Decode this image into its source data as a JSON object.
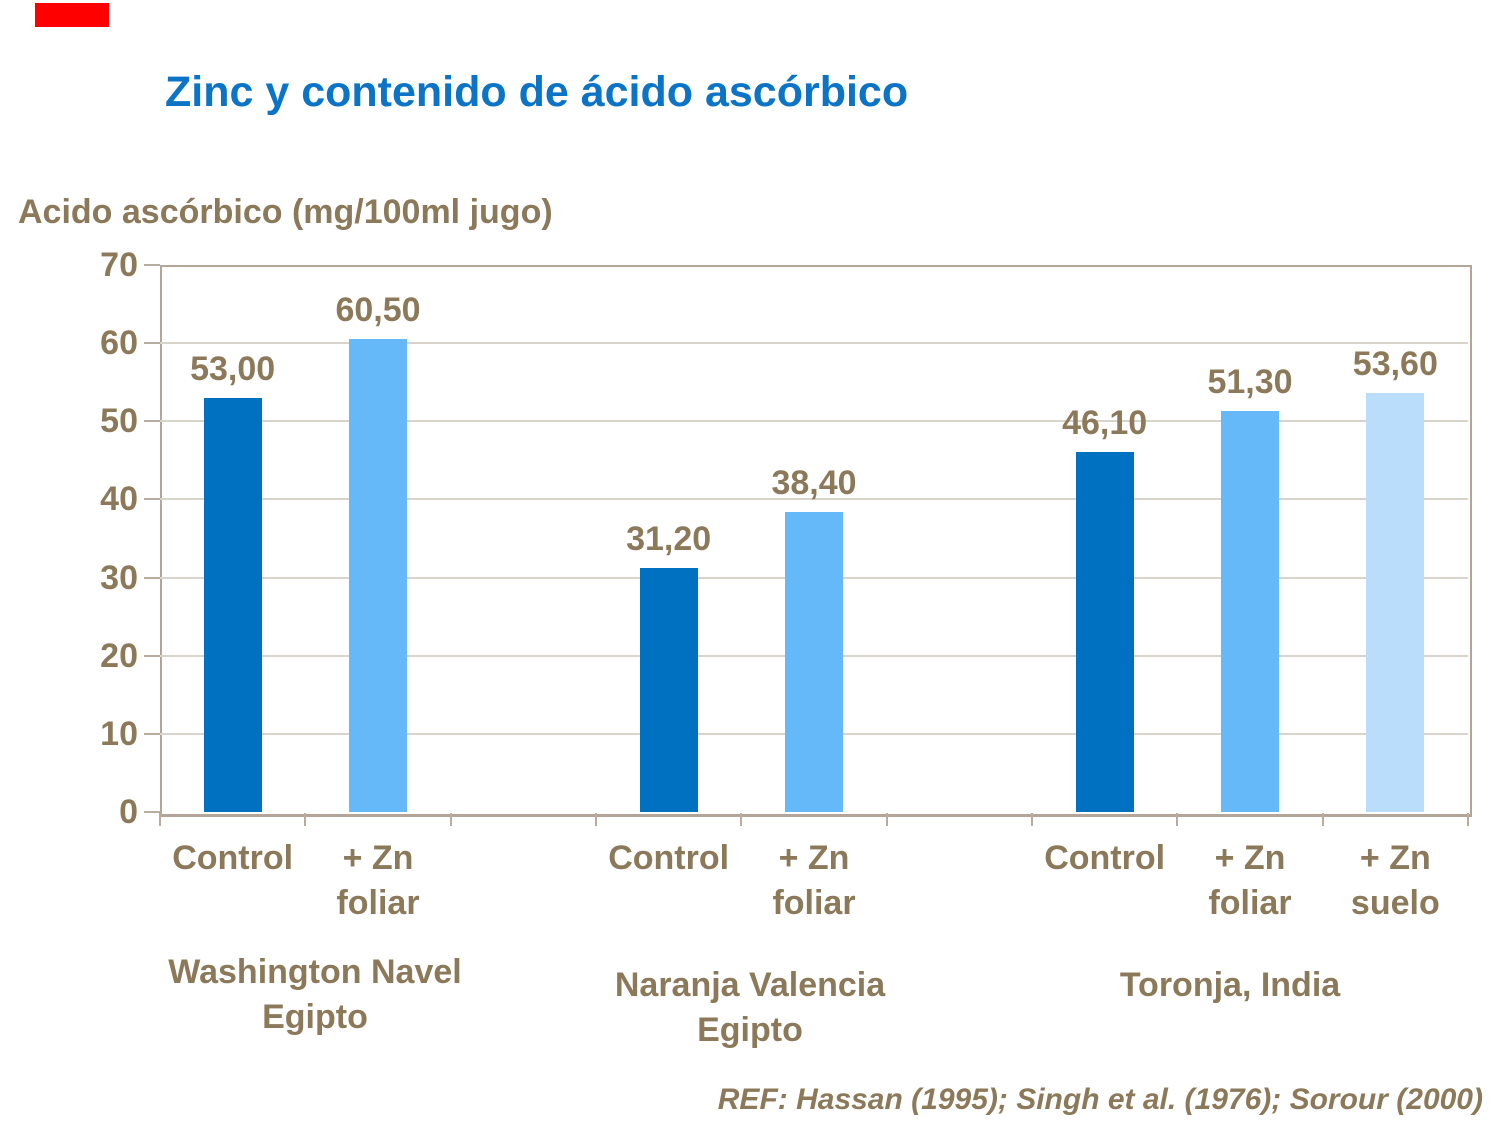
{
  "accent_bar": {
    "color": "#FF0000"
  },
  "chart_data": {
    "type": "bar",
    "title": "Zinc y contenido de ácido ascórbico",
    "ylabel": "Acido ascórbico (mg/100ml jugo)",
    "ylim": [
      0,
      70
    ],
    "yticks": [
      0,
      10,
      20,
      30,
      40,
      50,
      60,
      70
    ],
    "grid": true,
    "legend_position": "none",
    "groups": [
      {
        "label": "Washington Navel Egipto",
        "label_lines": [
          "Washington Navel",
          "Egipto"
        ],
        "bars": [
          {
            "category": "Control",
            "category_lines": [
              "Control"
            ],
            "value": 53.0,
            "value_label": "53,00",
            "color": "#0070C0"
          },
          {
            "category": "+ Zn foliar",
            "category_lines": [
              "+ Zn",
              "foliar"
            ],
            "value": 60.5,
            "value_label": "60,50",
            "color": "#66B9F9"
          }
        ]
      },
      {
        "label": "Naranja Valencia Egipto",
        "label_lines": [
          "Naranja Valencia",
          "Egipto"
        ],
        "bars": [
          {
            "category": "Control",
            "category_lines": [
              "Control"
            ],
            "value": 31.2,
            "value_label": "31,20",
            "color": "#0070C0"
          },
          {
            "category": "+ Zn foliar",
            "category_lines": [
              "+ Zn",
              "foliar"
            ],
            "value": 38.4,
            "value_label": "38,40",
            "color": "#66B9F9"
          }
        ]
      },
      {
        "label": "Toronja, India",
        "label_lines": [
          "Toronja, India"
        ],
        "bars": [
          {
            "category": "Control",
            "category_lines": [
              "Control"
            ],
            "value": 46.1,
            "value_label": "46,10",
            "color": "#0070C0"
          },
          {
            "category": "+ Zn foliar",
            "category_lines": [
              "+ Zn",
              "foliar"
            ],
            "value": 51.3,
            "value_label": "51,30",
            "color": "#66B9F9"
          },
          {
            "category": "+ Zn suelo",
            "category_lines": [
              "+ Zn",
              "suelo"
            ],
            "value": 53.6,
            "value_label": "53,60",
            "color": "#B9DDFB"
          }
        ]
      }
    ],
    "reference": "REF: Hassan (1995); Singh et al. (1976); Sorour (2000)",
    "colors": {
      "control": "#0070C0",
      "zn_foliar": "#66B9F9",
      "zn_suelo": "#B9DDFB",
      "label_text": "#8B795A",
      "title_text": "#0B74C6",
      "accent_bar": "#FF0000"
    }
  }
}
